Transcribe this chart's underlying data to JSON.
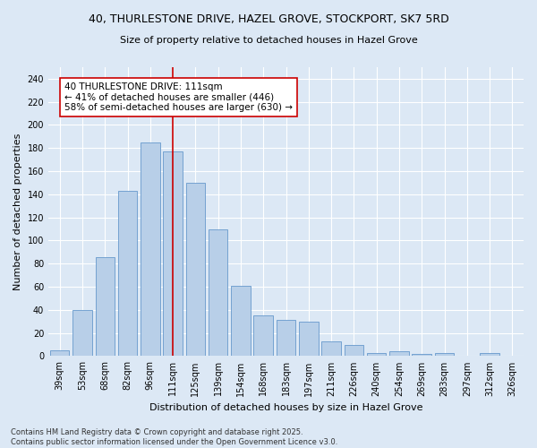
{
  "title1": "40, THURLESTONE DRIVE, HAZEL GROVE, STOCKPORT, SK7 5RD",
  "title2": "Size of property relative to detached houses in Hazel Grove",
  "xlabel": "Distribution of detached houses by size in Hazel Grove",
  "ylabel": "Number of detached properties",
  "bar_labels": [
    "39sqm",
    "53sqm",
    "68sqm",
    "82sqm",
    "96sqm",
    "111sqm",
    "125sqm",
    "139sqm",
    "154sqm",
    "168sqm",
    "183sqm",
    "197sqm",
    "211sqm",
    "226sqm",
    "240sqm",
    "254sqm",
    "269sqm",
    "283sqm",
    "297sqm",
    "312sqm",
    "326sqm"
  ],
  "bar_heights": [
    5,
    40,
    86,
    143,
    185,
    177,
    150,
    110,
    61,
    35,
    31,
    30,
    13,
    10,
    3,
    4,
    2,
    3,
    0,
    3,
    0
  ],
  "bar_color": "#b8cfe8",
  "bar_edge_color": "#6699cc",
  "vline_label_idx": 5,
  "vline_color": "#cc0000",
  "annotation_text": "40 THURLESTONE DRIVE: 111sqm\n← 41% of detached houses are smaller (446)\n58% of semi-detached houses are larger (630) →",
  "annotation_box_color": "#ffffff",
  "annotation_border_color": "#cc0000",
  "ylim": [
    0,
    250
  ],
  "yticks": [
    0,
    20,
    40,
    60,
    80,
    100,
    120,
    140,
    160,
    180,
    200,
    220,
    240
  ],
  "bg_color": "#dce8f5",
  "plot_bg_color": "#dce8f5",
  "footer": "Contains HM Land Registry data © Crown copyright and database right 2025.\nContains public sector information licensed under the Open Government Licence v3.0.",
  "title_fontsize": 9,
  "subtitle_fontsize": 8,
  "axis_label_fontsize": 8,
  "tick_fontsize": 7,
  "annotation_fontsize": 7.5,
  "ylabel_fontsize": 8
}
